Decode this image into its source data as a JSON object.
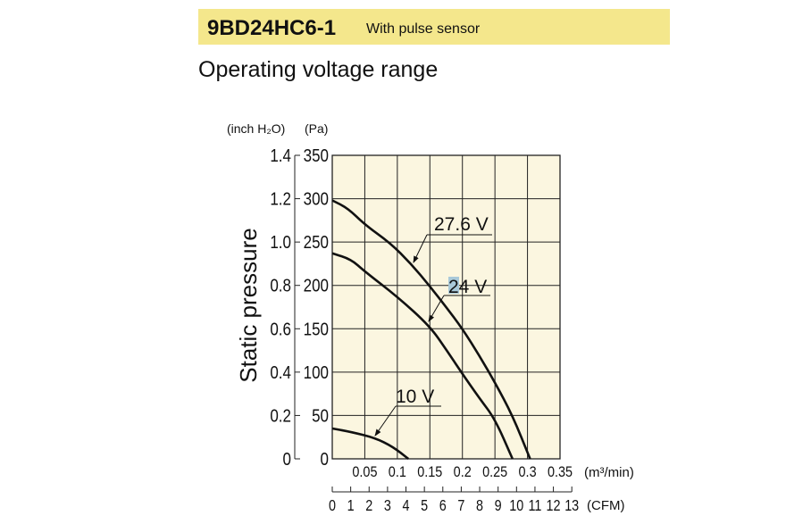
{
  "header": {
    "model": "9BD24HC6-1",
    "subtitle": "With pulse sensor"
  },
  "section_title": "Operating voltage range",
  "chart_data": {
    "type": "line",
    "title": "",
    "xlabel": "(m³/min)",
    "x2label": "(CFM)",
    "ylabel": "Static pressure",
    "y_unit_left": "(inch H₂O)",
    "y_unit_right": "(Pa)",
    "xlim": [
      0,
      0.35
    ],
    "ylim": [
      0,
      350
    ],
    "grid": true,
    "background": "#fbf6e0",
    "x_ticks": [
      "0.05",
      "0.1",
      "0.15",
      "0.2",
      "0.25",
      "0.3",
      "0.35"
    ],
    "x_tick_values": [
      0.05,
      0.1,
      0.15,
      0.2,
      0.25,
      0.3,
      0.35
    ],
    "cfm_ticks": [
      "0",
      "1",
      "2",
      "3",
      "4",
      "5",
      "6",
      "7",
      "8",
      "9",
      "10",
      "11",
      "12",
      "13"
    ],
    "pa_ticks": [
      "0",
      "50",
      "100",
      "150",
      "200",
      "250",
      "300",
      "350"
    ],
    "pa_tick_values": [
      0,
      50,
      100,
      150,
      200,
      250,
      300,
      350
    ],
    "inch_ticks": [
      "0",
      "0.2",
      "0.4",
      "0.6",
      "0.8",
      "1.0",
      "1.2",
      "1.4"
    ],
    "series": [
      {
        "name": "27.6 V",
        "x": [
          0,
          0.024,
          0.05,
          0.089,
          0.121,
          0.15,
          0.176,
          0.2,
          0.226,
          0.25,
          0.277,
          0.304
        ],
        "y": [
          298,
          289,
          270,
          249,
          225,
          199,
          174,
          150,
          119,
          88,
          50,
          0
        ]
      },
      {
        "name": "24 V",
        "x": [
          0,
          0.029,
          0.05,
          0.1,
          0.15,
          0.176,
          0.2,
          0.226,
          0.25,
          0.277
        ],
        "y": [
          237,
          230,
          216,
          187,
          153,
          125,
          98,
          70,
          46,
          0
        ]
      },
      {
        "name": "10 V",
        "x": [
          0,
          0.029,
          0.066,
          0.093,
          0.117
        ],
        "y": [
          35,
          31,
          24,
          14,
          0
        ]
      }
    ]
  }
}
